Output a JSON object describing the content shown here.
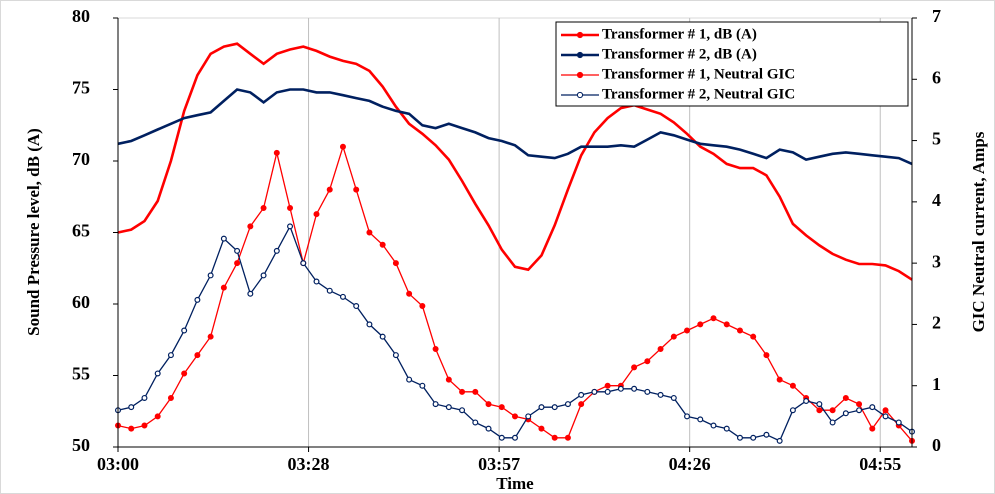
{
  "chart_data": {
    "type": "line",
    "x_label": "Time",
    "y_label": "Sound Pressure level, dB (A)",
    "y2_label": "GIC Neutral current, Amps",
    "x": [
      180,
      182,
      184,
      186,
      188,
      190,
      192,
      194,
      196,
      198,
      200,
      202,
      204,
      206,
      208,
      210,
      212,
      214,
      216,
      218,
      220,
      222,
      224,
      226,
      228,
      230,
      232,
      234,
      236,
      238,
      240,
      242,
      244,
      246,
      248,
      250,
      252,
      254,
      256,
      258,
      260,
      262,
      264,
      266,
      268,
      270,
      272,
      274,
      276,
      278,
      280,
      282,
      284,
      286,
      288,
      290,
      292,
      294,
      296,
      298,
      300
    ],
    "xlim": [
      180,
      300
    ],
    "xticks": [
      {
        "value": 180,
        "label": "03:00"
      },
      {
        "value": 208.8,
        "label": "03:28"
      },
      {
        "value": 237.6,
        "label": "03:57"
      },
      {
        "value": 266.4,
        "label": "04:26"
      },
      {
        "value": 295.2,
        "label": "04:55"
      }
    ],
    "ylim": [
      50,
      80
    ],
    "yticks": [
      50,
      55,
      60,
      65,
      70,
      75,
      80
    ],
    "y2lim": [
      0,
      7
    ],
    "y2ticks": [
      0,
      1,
      2,
      3,
      4,
      5,
      6,
      7
    ],
    "grid": true,
    "legend": "upper right",
    "series": [
      {
        "name": "Transformer # 1, dB (A)",
        "color": "#ff0000",
        "axis": "y",
        "markers": false,
        "values": [
          65.0,
          65.2,
          65.8,
          67.2,
          70.0,
          73.5,
          76.0,
          77.5,
          78.0,
          78.2,
          77.5,
          76.8,
          77.5,
          77.8,
          78.0,
          77.7,
          77.3,
          77.0,
          76.8,
          76.3,
          75.2,
          73.8,
          72.6,
          71.9,
          71.1,
          70.1,
          68.6,
          67.0,
          65.5,
          63.8,
          62.6,
          62.4,
          63.4,
          65.5,
          68.0,
          70.4,
          72.0,
          73.0,
          73.7,
          73.9,
          73.6,
          73.3,
          72.7,
          71.9,
          71.0,
          70.5,
          69.8,
          69.5,
          69.5,
          69.0,
          67.5,
          65.6,
          64.8,
          64.1,
          63.5,
          63.1,
          62.8,
          62.8,
          62.7,
          62.3,
          61.7
        ]
      },
      {
        "name": "Transformer # 2, dB (A)",
        "color": "#002060",
        "axis": "y",
        "markers": false,
        "values": [
          71.2,
          71.4,
          71.8,
          72.2,
          72.6,
          73.0,
          73.2,
          73.4,
          74.2,
          75.0,
          74.8,
          74.1,
          74.8,
          75.0,
          75.0,
          74.8,
          74.8,
          74.6,
          74.4,
          74.2,
          73.8,
          73.5,
          73.3,
          72.5,
          72.3,
          72.6,
          72.3,
          72.0,
          71.6,
          71.4,
          71.1,
          70.4,
          70.3,
          70.2,
          70.5,
          71.0,
          71.0,
          71.0,
          71.1,
          71.0,
          71.5,
          72.0,
          71.8,
          71.5,
          71.2,
          71.1,
          71.0,
          70.8,
          70.5,
          70.2,
          70.8,
          70.6,
          70.1,
          70.3,
          70.5,
          70.6,
          70.5,
          70.4,
          70.3,
          70.2,
          69.8
        ]
      },
      {
        "name": "Transformer # 1, Neutral GIC",
        "color": "#ff0000",
        "axis": "y2",
        "markers": true,
        "values": [
          0.35,
          0.3,
          0.35,
          0.5,
          0.8,
          1.2,
          1.5,
          1.8,
          2.6,
          3.0,
          3.6,
          3.9,
          4.8,
          3.9,
          3.0,
          3.8,
          4.2,
          4.9,
          4.2,
          3.5,
          3.3,
          3.0,
          2.5,
          2.3,
          1.6,
          1.1,
          0.9,
          0.9,
          0.7,
          0.65,
          0.5,
          0.45,
          0.3,
          0.15,
          0.15,
          0.7,
          0.9,
          1.0,
          1.0,
          1.3,
          1.4,
          1.6,
          1.8,
          1.9,
          2.0,
          2.1,
          2.0,
          1.9,
          1.8,
          1.5,
          1.1,
          1.0,
          0.8,
          0.6,
          0.6,
          0.8,
          0.7,
          0.3,
          0.6,
          0.35,
          0.1
        ]
      },
      {
        "name": "Transformer # 2, Neutral GIC",
        "color": "#002060",
        "axis": "y2",
        "markers": true,
        "values": [
          0.6,
          0.65,
          0.8,
          1.2,
          1.5,
          1.9,
          2.4,
          2.8,
          3.4,
          3.2,
          2.5,
          2.8,
          3.2,
          3.6,
          3.0,
          2.7,
          2.55,
          2.45,
          2.3,
          2.0,
          1.8,
          1.5,
          1.1,
          1.0,
          0.7,
          0.65,
          0.6,
          0.4,
          0.3,
          0.15,
          0.15,
          0.5,
          0.65,
          0.65,
          0.7,
          0.85,
          0.9,
          0.9,
          0.95,
          0.95,
          0.9,
          0.85,
          0.8,
          0.5,
          0.45,
          0.35,
          0.3,
          0.15,
          0.15,
          0.2,
          0.1,
          0.6,
          0.75,
          0.7,
          0.4,
          0.55,
          0.6,
          0.65,
          0.5,
          0.4,
          0.25
        ]
      }
    ]
  }
}
